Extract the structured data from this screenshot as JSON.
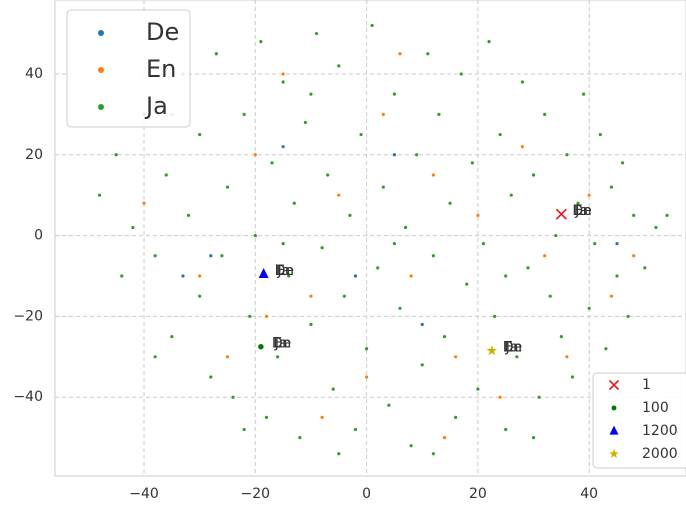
{
  "chart_data": {
    "type": "scatter",
    "xlim": [
      -56,
      57.4
    ],
    "ylim": [
      -59.5,
      58.3
    ],
    "xticks": [
      {
        "value": -40,
        "label": "−40"
      },
      {
        "value": -20,
        "label": "−20"
      },
      0,
      20,
      40
    ],
    "yticks": [
      {
        "value": -40,
        "label": "−40"
      },
      {
        "value": -20,
        "label": "−20"
      },
      0,
      20,
      40
    ],
    "grid": true,
    "legend": "upper left",
    "series": [
      {
        "name": "De",
        "color": "#1f77b4",
        "x": [
          -28,
          -33,
          -15,
          10,
          30,
          45,
          5,
          -2
        ],
        "y": [
          -5,
          -10,
          22,
          -22,
          15,
          -2,
          20,
          -10
        ]
      },
      {
        "name": "En",
        "color": "#ff7f0e",
        "x": [
          -40,
          -30,
          -25,
          -20,
          -15,
          -10,
          -5,
          0,
          3,
          8,
          12,
          16,
          20,
          24,
          28,
          32,
          36,
          40,
          44,
          -18,
          6,
          -8,
          14,
          48,
          -35
        ],
        "y": [
          8,
          -10,
          -30,
          20,
          40,
          -15,
          10,
          -35,
          30,
          -10,
          15,
          -30,
          5,
          -40,
          22,
          -5,
          -30,
          10,
          -15,
          -20,
          45,
          -45,
          -50,
          -5,
          30
        ]
      },
      {
        "name": "Ja",
        "color": "#2ca02c",
        "x": [
          -48,
          -45,
          -42,
          -40,
          -38,
          -36,
          -35,
          -33,
          -32,
          -30,
          -30,
          -28,
          -27,
          -26,
          -25,
          -24,
          -22,
          -21,
          -20,
          -19,
          -18,
          -17,
          -16,
          -15,
          -14,
          -13,
          -12,
          -11,
          -10,
          -9,
          -8,
          -7,
          -6,
          -5,
          -4,
          -3,
          -2,
          -1,
          0,
          1,
          2,
          3,
          4,
          5,
          6,
          7,
          8,
          9,
          10,
          11,
          12,
          13,
          14,
          15,
          16,
          17,
          18,
          19,
          20,
          21,
          22,
          23,
          24,
          25,
          26,
          27,
          28,
          29,
          30,
          31,
          32,
          33,
          34,
          35,
          36,
          37,
          38,
          39,
          40,
          41,
          42,
          43,
          44,
          45,
          46,
          47,
          48,
          50,
          52,
          54,
          -44,
          -38,
          -22,
          -5,
          12,
          30,
          -10,
          5,
          -15,
          25
        ],
        "y": [
          10,
          20,
          2,
          30,
          -5,
          15,
          -25,
          40,
          5,
          -15,
          25,
          -35,
          45,
          -5,
          12,
          -40,
          30,
          -20,
          0,
          48,
          -45,
          18,
          -30,
          38,
          -10,
          8,
          -50,
          28,
          -22,
          50,
          -3,
          15,
          -38,
          42,
          -15,
          5,
          -48,
          25,
          -28,
          52,
          -8,
          12,
          -42,
          35,
          -18,
          2,
          -52,
          20,
          -32,
          45,
          -5,
          30,
          -25,
          8,
          -45,
          40,
          -12,
          18,
          -38,
          -2,
          48,
          -20,
          25,
          -48,
          10,
          -30,
          38,
          -8,
          15,
          -40,
          30,
          -15,
          0,
          -25,
          20,
          -35,
          8,
          35,
          -18,
          -2,
          25,
          -28,
          12,
          -10,
          18,
          -20,
          5,
          -8,
          2,
          5,
          -10,
          -30,
          -48,
          -54,
          -54,
          -50,
          35,
          -2,
          -2,
          -10
        ]
      }
    ],
    "highlights": [
      {
        "label": "1",
        "marker": "x",
        "color": "#e41a1c",
        "x": 35,
        "y": 5.3,
        "texts": [
          "De",
          "En",
          "Ja"
        ]
      },
      {
        "label": "100",
        "marker": "o",
        "color": "#007a00",
        "x": -19,
        "y": -27.5,
        "texts": [
          "De",
          "En",
          "Ja"
        ]
      },
      {
        "label": "1200",
        "marker": "^",
        "color": "#0000ee",
        "x": -18.5,
        "y": -9.5,
        "texts": [
          "De",
          "En",
          "Ja"
        ]
      },
      {
        "label": "2000",
        "marker": "*",
        "color": "#c8b400",
        "x": 22.5,
        "y": -28.5,
        "texts": [
          "De",
          "En",
          "Ja"
        ]
      }
    ]
  }
}
